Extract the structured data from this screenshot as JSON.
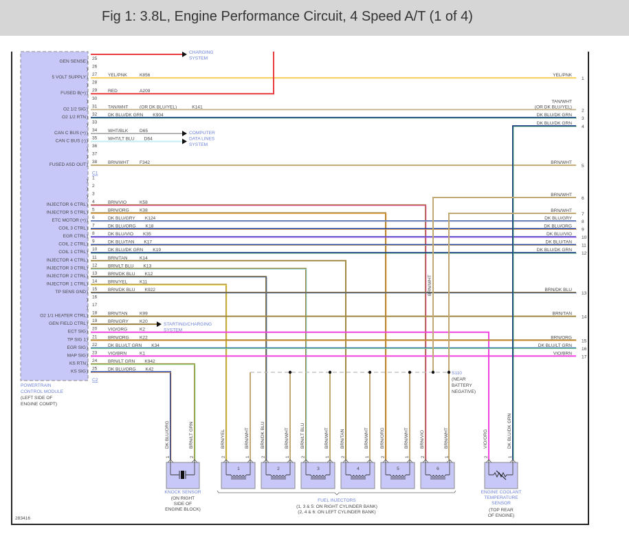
{
  "title": "Fig 1: 3.8L, Engine Performance Circuit, 4 Speed A/T (1 of 4)",
  "figure_id": "283416",
  "pcm": {
    "name_lines": [
      "POWERTRAIN",
      "CONTROL MODULE"
    ],
    "location_lines": [
      "(LEFT SIDE OF",
      "ENGINE COMPT)"
    ],
    "connectors": [
      {
        "label": "C1",
        "pins": [
          {
            "pin": "25",
            "func": "GEN SENSE",
            "wire": "RED",
            "circuit": "",
            "dest": "arrow:charging"
          },
          {
            "pin": "26",
            "func": "",
            "wire": "",
            "circuit": "",
            "dest": ""
          },
          {
            "pin": "27",
            "func": "5 VOLT SUPPLY",
            "wire": "YEL/PNK",
            "circuit": "K856",
            "dest": "R:1"
          },
          {
            "pin": "28",
            "func": "",
            "wire": "",
            "circuit": "",
            "dest": ""
          },
          {
            "pin": "29",
            "func": "FUSED B(+)",
            "wire": "RED",
            "circuit": "A209",
            "dest": "up"
          },
          {
            "pin": "30",
            "func": "",
            "wire": "",
            "circuit": "",
            "dest": ""
          },
          {
            "pin": "31",
            "func": "O2 1/2 SIG",
            "wire": "TAN/WHT",
            "alt": "(OR DK BLU/YEL)",
            "circuit": "K141",
            "dest": "R:2"
          },
          {
            "pin": "32",
            "func": "O2 1/2 RTN",
            "wire": "DK BLU/DK GRN",
            "circuit": "K904",
            "dest": "R:3"
          },
          {
            "pin": "33",
            "func": "",
            "wire": "",
            "circuit": "",
            "dest": ""
          },
          {
            "pin": "34",
            "func": "CAN C BUS (+)",
            "wire": "WHT/BLK",
            "circuit": "D65",
            "dest": "arrow:datalines"
          },
          {
            "pin": "35",
            "func": "CAN C BUS (-)",
            "wire": "WHT/LT BLU",
            "circuit": "D64",
            "dest": "arrow:datalines"
          },
          {
            "pin": "36",
            "func": "",
            "wire": "",
            "circuit": "",
            "dest": ""
          },
          {
            "pin": "37",
            "func": "",
            "wire": "",
            "circuit": "",
            "dest": ""
          },
          {
            "pin": "38",
            "func": "FUSED ASD OUT",
            "wire": "BRN/WHT",
            "circuit": "F342",
            "dest": "R:5"
          }
        ]
      },
      {
        "label": "C2",
        "pins": [
          {
            "pin": "1",
            "func": "",
            "wire": "",
            "circuit": "",
            "dest": ""
          },
          {
            "pin": "2",
            "func": "",
            "wire": "",
            "circuit": "",
            "dest": ""
          },
          {
            "pin": "3",
            "func": "",
            "wire": "",
            "circuit": "",
            "dest": ""
          },
          {
            "pin": "4",
            "func": "INJECTOR 6 CTRL",
            "wire": "BRN/VIO",
            "circuit": "K58",
            "dest": "drop:inj6"
          },
          {
            "pin": "5",
            "func": "INJECTOR 5 CTRL",
            "wire": "BRN/ORG",
            "circuit": "K38",
            "dest": "drop:inj5"
          },
          {
            "pin": "6",
            "func": "ETC MOTOR (+)",
            "wire": "DK BLU/GRY",
            "circuit": "K124",
            "dest": "R:8"
          },
          {
            "pin": "7",
            "func": "COIL 3 CTRL",
            "wire": "DK BLU/ORG",
            "circuit": "K18",
            "dest": "R:9"
          },
          {
            "pin": "8",
            "func": "EGR CTRL",
            "wire": "DK BLU/VIO",
            "circuit": "K35",
            "dest": "R:10"
          },
          {
            "pin": "9",
            "func": "COIL 2 CTRL",
            "wire": "DK BLU/TAN",
            "circuit": "K17",
            "dest": "R:11"
          },
          {
            "pin": "10",
            "func": "COIL 1 CTRL",
            "wire": "DK BLU/DK GRN",
            "circuit": "K19",
            "dest": "R:12"
          },
          {
            "pin": "11",
            "func": "INJECTOR 4 CTRL",
            "wire": "BRN/TAN",
            "circuit": "K14",
            "dest": "drop:inj4"
          },
          {
            "pin": "12",
            "func": "INJECTOR 3 CTRL",
            "wire": "BRN/LT BLU",
            "circuit": "K13",
            "dest": "drop:inj3"
          },
          {
            "pin": "13",
            "func": "INJECTOR 2 CTRL",
            "wire": "BRN/DK BLU",
            "circuit": "K12",
            "dest": "drop:inj2"
          },
          {
            "pin": "14",
            "func": "INJECTOR 1 CTRL",
            "wire": "BRN/YEL",
            "circuit": "K11",
            "dest": "drop:inj1"
          },
          {
            "pin": "15",
            "func": "TP SENS GND",
            "wire": "BRN/DK BLU",
            "circuit": "K922",
            "dest": "R:13"
          },
          {
            "pin": "16",
            "func": "",
            "wire": "",
            "circuit": "",
            "dest": ""
          },
          {
            "pin": "17",
            "func": "",
            "wire": "",
            "circuit": "",
            "dest": ""
          },
          {
            "pin": "18",
            "func": "O2 1/1 HEATER CTRL",
            "wire": "BRN/TAN",
            "circuit": "K99",
            "dest": "R:14"
          },
          {
            "pin": "19",
            "func": "GEN FIELD CTRL",
            "wire": "BRN/GRY",
            "circuit": "K20",
            "dest": "arrow:starting"
          },
          {
            "pin": "20",
            "func": "ECT SIG",
            "wire": "VIO/ORG",
            "circuit": "K2",
            "dest": "drop:ect2"
          },
          {
            "pin": "21",
            "func": "TP SIG 1",
            "wire": "BRN/ORG",
            "circuit": "K22",
            "dest": "R:15"
          },
          {
            "pin": "22",
            "func": "EGR SIG",
            "wire": "DK BLU/LT GRN",
            "circuit": "K34",
            "dest": "R:16"
          },
          {
            "pin": "23",
            "func": "MAP SIG",
            "wire": "VIO/BRN",
            "circuit": "K1",
            "dest": "R:17"
          },
          {
            "pin": "24",
            "func": "KS RTN",
            "wire": "BRN/LT GRN",
            "circuit": "K942",
            "dest": "drop:knock2"
          },
          {
            "pin": "25",
            "func": "KS SIG",
            "wire": "DK BLU/ORG",
            "circuit": "K42",
            "dest": "drop:knock1"
          }
        ]
      }
    ]
  },
  "arrows": {
    "charging": [
      "CHARGING",
      "SYSTEM"
    ],
    "datalines": [
      "COMPUTER",
      "DATA LINES",
      "SYSTEM"
    ],
    "starting": [
      "STARTING/CHARGING",
      "SYSTEM"
    ]
  },
  "right_terminals": [
    {
      "num": "1",
      "labels": [
        "YEL/PNK"
      ],
      "wire": "YEL/PNK"
    },
    {
      "num": "2",
      "labels": [
        "TAN/WHT",
        "(OR DK BLU/YEL)"
      ],
      "wire": "TAN/WHT"
    },
    {
      "num": "3",
      "labels": [
        "DK BLU/DK GRN"
      ],
      "wire": "DK BLU/DK GRN"
    },
    {
      "num": "4",
      "labels": [
        "DK BLU/DK GRN"
      ],
      "wire": "DK BLU/DK GRN"
    },
    {
      "num": "5",
      "labels": [
        "BRN/WHT"
      ],
      "wire": "BRN/WHT"
    },
    {
      "num": "6",
      "labels": [
        "BRN/WHT"
      ],
      "wire": "BRN/WHT"
    },
    {
      "num": "7",
      "labels": [
        "BRN/WHT"
      ],
      "wire": "BRN/WHT"
    },
    {
      "num": "8",
      "labels": [
        "DK BLU/GRY"
      ],
      "wire": "DK BLU/GRY"
    },
    {
      "num": "9",
      "labels": [
        "DK BLU/ORG"
      ],
      "wire": "DK BLU/ORG"
    },
    {
      "num": "10",
      "labels": [
        "DK BLU/VIO"
      ],
      "wire": "DK BLU/VIO"
    },
    {
      "num": "11",
      "labels": [
        "DK BLU/TAN"
      ],
      "wire": "DK BLU/TAN"
    },
    {
      "num": "12",
      "labels": [
        "DK BLU/DK GRN"
      ],
      "wire": "DK BLU/DK GRN"
    },
    {
      "num": "13",
      "labels": [
        "BRN/DK BLU"
      ],
      "wire": "BRN/DK BLU"
    },
    {
      "num": "14",
      "labels": [
        "BRN/TAN"
      ],
      "wire": "BRN/TAN"
    },
    {
      "num": "15",
      "labels": [
        "BRN/ORG"
      ],
      "wire": "BRN/ORG"
    },
    {
      "num": "16",
      "labels": [
        "DK BLU/LT GRN"
      ],
      "wire": "DK BLU/LT GRN"
    },
    {
      "num": "17",
      "labels": [
        "VIO/BRN"
      ],
      "wire": "VIO/BRN"
    }
  ],
  "splice": {
    "id": "S110",
    "lines": [
      "(NEAR",
      "BATTERY",
      "NEGATIVE)"
    ],
    "vertical_label": "BRN/WHT"
  },
  "knock_sensor": {
    "pins": [
      {
        "num": "1",
        "wire": "DK BLU/ORG"
      },
      {
        "num": "2",
        "wire": "BRN/LT GRN"
      }
    ],
    "name": "KNOCK SENSOR",
    "location_lines": [
      "(ON RIGHT",
      "SIDE OF",
      "ENGINE BLOCK)"
    ]
  },
  "injectors": {
    "items": [
      {
        "num": "1",
        "pins": [
          {
            "num": "2",
            "wire": "BRN/YEL"
          },
          {
            "num": "1",
            "wire": "BRN/WHT"
          }
        ]
      },
      {
        "num": "2",
        "pins": [
          {
            "num": "2",
            "wire": "BRN/DK BLU"
          },
          {
            "num": "1",
            "wire": "BRN/WHT"
          }
        ]
      },
      {
        "num": "3",
        "pins": [
          {
            "num": "2",
            "wire": "BRN/LT BLU"
          },
          {
            "num": "1",
            "wire": "BRN/WHT"
          }
        ]
      },
      {
        "num": "4",
        "pins": [
          {
            "num": "2",
            "wire": "BRN/TAN"
          },
          {
            "num": "1",
            "wire": "BRN/WHT"
          }
        ]
      },
      {
        "num": "5",
        "pins": [
          {
            "num": "2",
            "wire": "BRN/ORG"
          },
          {
            "num": "1",
            "wire": "BRN/WHT"
          }
        ]
      },
      {
        "num": "6",
        "pins": [
          {
            "num": "2",
            "wire": "BRN/VIO"
          },
          {
            "num": "1",
            "wire": "BRN/WHT"
          }
        ]
      }
    ],
    "name": "FUEL INJECTORS",
    "note_lines": [
      "(1, 3 & 5: ON RIGHT CYLINDER BANK)",
      "(2, 4 & 6: ON LEFT CYLINDER BANK)"
    ]
  },
  "ect_sensor": {
    "pins": [
      {
        "num": "2",
        "wire": "VIO/ORG"
      },
      {
        "num": "1",
        "wire": "DK BLU/DK GRN"
      }
    ],
    "name_lines": [
      "ENGINE COOLANT",
      "TEMPERATURE",
      "SENSOR"
    ],
    "location_lines": [
      "(TOP REAR",
      "OF ENGINE)"
    ]
  },
  "wire_colors": {
    "RED": [
      "#e83a3a"
    ],
    "YEL/PNK": [
      "#f8cf58",
      "#f8d890"
    ],
    "TAN/WHT": [
      "#c9b995"
    ],
    "DK BLU/DK GRN": [
      "#1f3a8a",
      "#2f9a5a"
    ],
    "WHT/BLK": [
      "#b4b4b4"
    ],
    "WHT/LT BLU": [
      "#c6eef4"
    ],
    "BRN/WHT": [
      "#bfa872"
    ],
    "BRN/VIO": [
      "#b07048",
      "#e64fb0"
    ],
    "BRN/ORG": [
      "#a88030",
      "#f0a040"
    ],
    "DK BLU/GRY": [
      "#6078b8",
      "#a0a8c0"
    ],
    "DK BLU/ORG": [
      "#1e3c98",
      "#e8a050"
    ],
    "DK BLU/VIO": [
      "#5050c8",
      "#b050e8"
    ],
    "DK BLU/TAN": [
      "#2848a0",
      "#c8b080"
    ],
    "BRN/TAN": [
      "#a08840"
    ],
    "BRN/LT BLU": [
      "#9a8840",
      "#80e0e8"
    ],
    "BRN/DK BLU": [
      "#8a7848",
      "#3050a0"
    ],
    "BRN/YEL": [
      "#b09840",
      "#f0d840"
    ],
    "BRN/GRY": [
      "#9a7c3c"
    ],
    "VIO/ORG": [
      "#f040e0"
    ],
    "DK BLU/LT GRN": [
      "#3a78a8",
      "#90e090"
    ],
    "VIO/BRN": [
      "#f040e0"
    ],
    "BRN/LT GRN": [
      "#a09048",
      "#90e080"
    ]
  }
}
